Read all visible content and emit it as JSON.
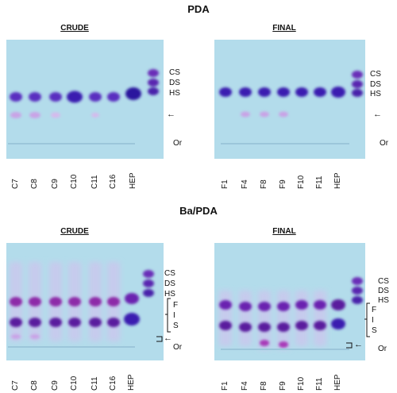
{
  "figure": {
    "top_title": "PDA",
    "bottom_title": "Ba/PDA"
  },
  "panels": {
    "crude_label": "CRUDE",
    "final_label": "FINAL"
  },
  "lanes": {
    "crude": [
      "C7",
      "C8",
      "C9",
      "C10",
      "C11",
      "C16",
      "HEP"
    ],
    "final": [
      "F1",
      "F4",
      "F8",
      "F9",
      "F10",
      "F11",
      "HEP"
    ]
  },
  "standards": {
    "cs": "CS",
    "ds": "DS",
    "hs": "HS",
    "origin": "Or",
    "f": "F",
    "i": "I",
    "s": "S"
  },
  "colors": {
    "gel_background": "#b3dceb",
    "band_dark": "#3b1fb0",
    "band_light": "#c9a3e6",
    "band_magenta": "#8d2aa8"
  }
}
